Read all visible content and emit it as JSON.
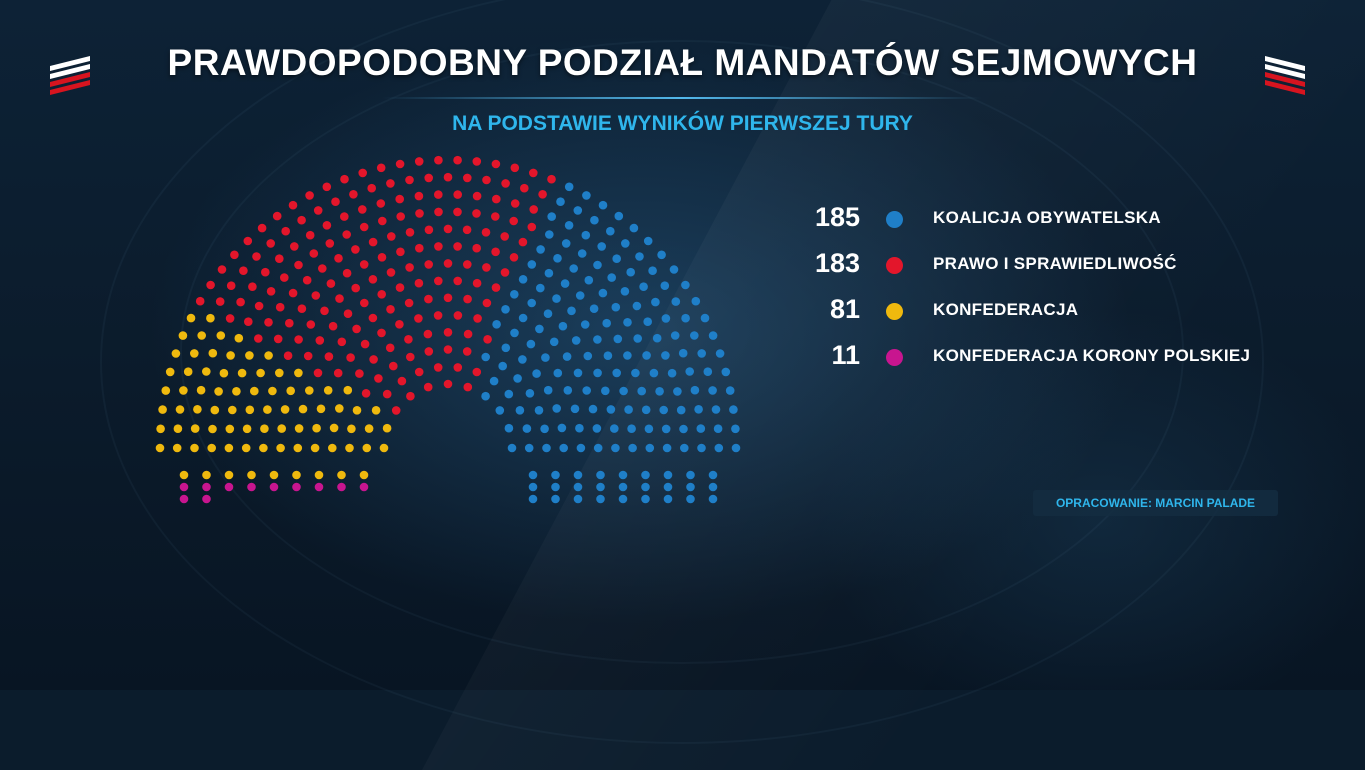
{
  "header": {
    "title": "PRAWDOPODOBNY PODZIAŁ MANDATÓW SEJMOWYCH",
    "subtitle": "NA PODSTAWIE WYNIKÓW PIERWSZEJ TURY"
  },
  "source": "OPRACOWANIE: MARCIN PALADE",
  "chart_data": {
    "type": "parliament",
    "total_seats": 460,
    "series": [
      {
        "name": "KOALICJA OBYWATELSKA",
        "value": 185,
        "color": "#1f7fc8"
      },
      {
        "name": "PRAWO I SPRAWIEDLIWOŚĆ",
        "value": 183,
        "color": "#e3162b"
      },
      {
        "name": "KONFEDERACJA",
        "value": 81,
        "color": "#efb90e"
      },
      {
        "name": "KONFEDERACJA KORONY POLSKIEJ",
        "value": 11,
        "color": "#c8158f"
      }
    ]
  },
  "flag_colors": [
    "#ffffff",
    "#d7141f"
  ]
}
